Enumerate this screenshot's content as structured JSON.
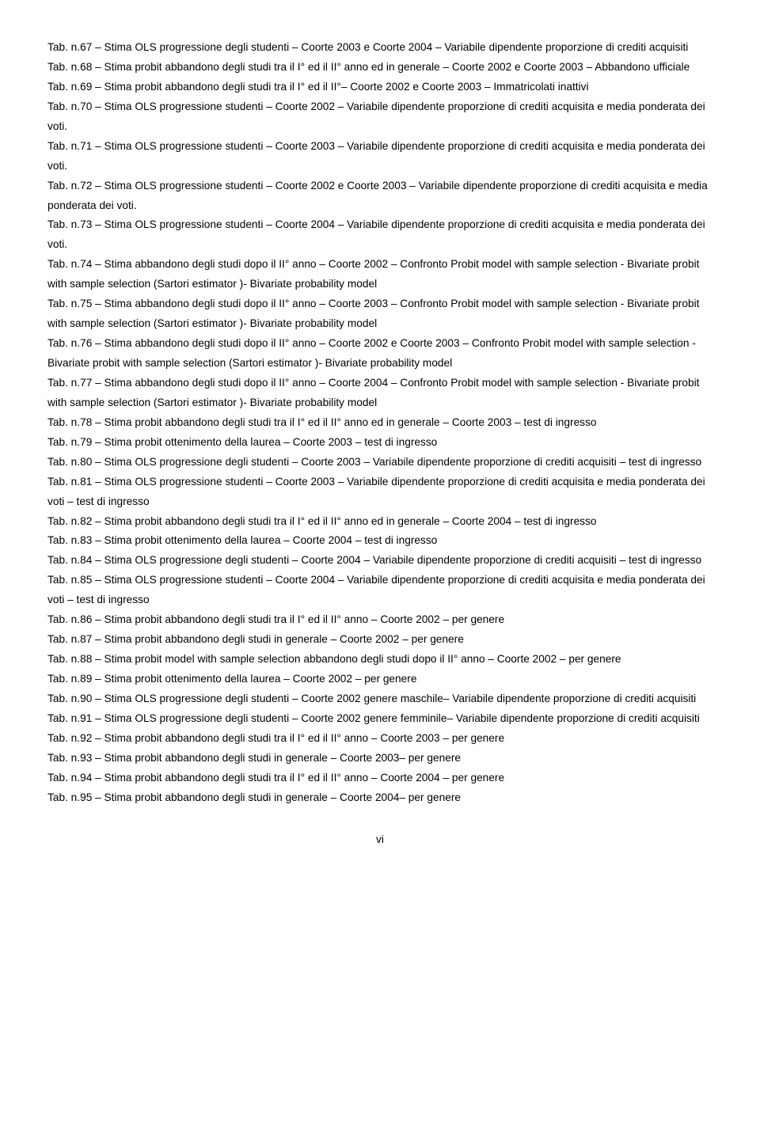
{
  "entries": [
    "Tab. n.67 – Stima OLS progressione degli studenti – Coorte 2003 e Coorte 2004 – Variabile dipendente proporzione di crediti acquisiti",
    "Tab. n.68 – Stima probit abbandono degli studi tra il I° ed il II° anno ed in generale – Coorte 2002 e Coorte 2003 – Abbandono ufficiale",
    "Tab. n.69 – Stima probit abbandono degli studi tra il I° ed il II°– Coorte 2002 e Coorte 2003 – Immatricolati inattivi",
    "Tab. n.70 – Stima OLS progressione studenti – Coorte 2002 – Variabile dipendente proporzione di crediti acquisita e media ponderata dei voti.",
    "Tab. n.71 – Stima OLS progressione studenti – Coorte 2003 – Variabile dipendente proporzione di crediti acquisita e media ponderata dei voti.",
    "Tab. n.72 – Stima OLS progressione studenti – Coorte 2002 e Coorte 2003 – Variabile dipendente proporzione di crediti acquisita e media ponderata dei voti.",
    "Tab. n.73 – Stima OLS progressione studenti – Coorte 2004 – Variabile dipendente proporzione di crediti acquisita e media ponderata dei voti.",
    "Tab. n.74 – Stima abbandono degli studi dopo il II° anno – Coorte 2002 – Confronto Probit model with sample selection - Bivariate probit with sample selection (Sartori estimator )- Bivariate probability model",
    "Tab. n.75 – Stima abbandono degli studi dopo il II° anno – Coorte 2003 – Confronto Probit model with sample selection - Bivariate probit with sample selection (Sartori estimator )- Bivariate probability model",
    "Tab. n.76 – Stima abbandono degli studi dopo il II° anno – Coorte 2002 e Coorte 2003 – Confronto Probit model with sample selection - Bivariate probit with sample selection (Sartori estimator )- Bivariate probability model",
    "Tab. n.77 – Stima abbandono degli studi dopo il II° anno – Coorte 2004 – Confronto Probit model with sample selection - Bivariate probit with sample selection (Sartori estimator )- Bivariate probability model",
    "Tab. n.78 – Stima probit abbandono degli studi tra il I° ed il II° anno ed in generale – Coorte 2003 – test di ingresso",
    "Tab. n.79 – Stima probit ottenimento della laurea – Coorte 2003 – test di ingresso",
    "Tab. n.80 – Stima OLS progressione degli studenti – Coorte 2003 – Variabile dipendente proporzione di crediti acquisiti – test di ingresso",
    "Tab. n.81 – Stima OLS progressione studenti – Coorte 2003 – Variabile dipendente proporzione di crediti acquisita e media ponderata dei voti – test di ingresso",
    "Tab. n.82 – Stima probit abbandono degli studi tra il I° ed il II° anno ed in generale – Coorte 2004 – test di ingresso",
    "Tab. n.83 – Stima probit ottenimento della laurea – Coorte 2004 – test di ingresso",
    "Tab. n.84 – Stima OLS progressione degli studenti – Coorte 2004 – Variabile dipendente proporzione di crediti acquisiti – test di ingresso",
    "Tab. n.85 – Stima OLS progressione studenti – Coorte 2004 – Variabile dipendente proporzione di crediti acquisita e media ponderata dei voti – test di ingresso",
    "Tab. n.86 – Stima probit abbandono degli studi tra il I° ed il II° anno – Coorte 2002 – per genere",
    "Tab. n.87 – Stima probit abbandono degli studi in generale – Coorte 2002 – per genere",
    "Tab. n.88 – Stima probit model with sample selection abbandono degli studi dopo il II° anno – Coorte 2002 – per genere",
    "Tab. n.89 – Stima probit ottenimento della laurea – Coorte 2002 – per genere",
    "Tab. n.90 – Stima OLS progressione degli studenti – Coorte 2002 genere maschile– Variabile dipendente proporzione di crediti acquisiti",
    "Tab. n.91 – Stima OLS progressione degli studenti – Coorte 2002 genere femminile– Variabile dipendente proporzione di crediti acquisiti",
    "Tab. n.92 – Stima probit abbandono degli studi tra il I° ed il II° anno – Coorte 2003 – per genere",
    "Tab. n.93 – Stima probit abbandono degli studi in generale – Coorte 2003– per genere",
    "Tab. n.94 – Stima probit abbandono degli studi tra il I° ed il II° anno – Coorte 2004 – per genere",
    "Tab. n.95 – Stima probit abbandono degli studi in generale – Coorte 2004– per genere"
  ],
  "pageNumber": "vi"
}
